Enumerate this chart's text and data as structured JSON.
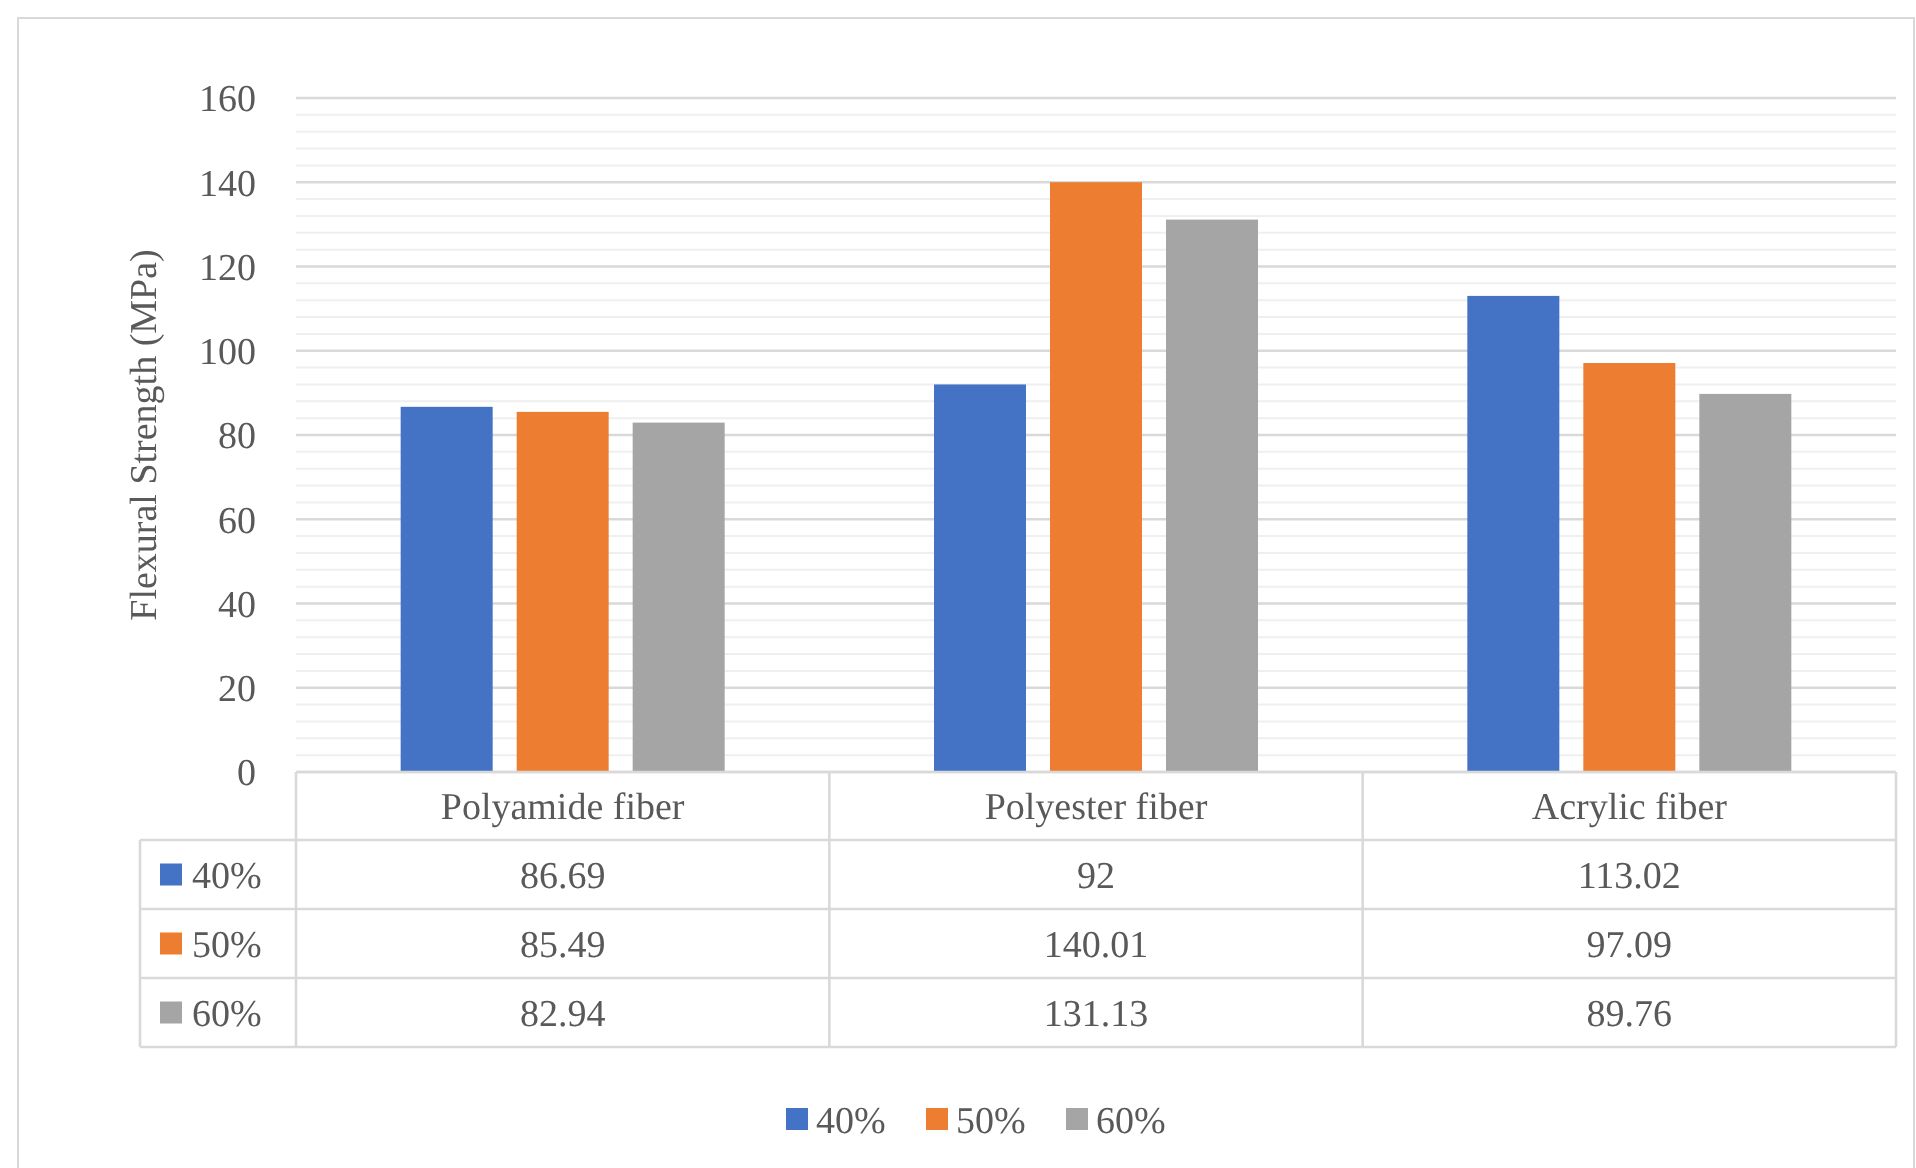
{
  "chart_data": {
    "type": "bar",
    "ylabel": "Flexural Strength (MPa)",
    "categories": [
      "Polyamide fiber",
      "Polyester fiber",
      "Acrylic fiber"
    ],
    "series": [
      {
        "name": "40%",
        "color": "#4472c4",
        "values": [
          86.69,
          92,
          113.02
        ]
      },
      {
        "name": "50%",
        "color": "#ed7d31",
        "values": [
          85.49,
          140.01,
          97.09
        ]
      },
      {
        "name": "60%",
        "color": "#a5a5a5",
        "values": [
          82.94,
          131.13,
          89.76
        ]
      }
    ],
    "ylim": [
      0,
      160
    ],
    "yticks": [
      0,
      {
        "value": 4,
        "label": null
      },
      {
        "value": 8,
        "label": null
      },
      {
        "value": 12,
        "label": null
      },
      {
        "value": 16,
        "label": null
      },
      20,
      {
        "value": 24,
        "label": null
      },
      {
        "value": 28,
        "label": null
      },
      {
        "value": 32,
        "label": null
      },
      {
        "value": 36,
        "label": null
      },
      40,
      {
        "value": 44,
        "label": null
      },
      {
        "value": 48,
        "label": null
      },
      {
        "value": 52,
        "label": null
      },
      {
        "value": 56,
        "label": null
      },
      60,
      {
        "value": 64,
        "label": null
      },
      {
        "value": 68,
        "label": null
      },
      {
        "value": 72,
        "label": null
      },
      {
        "value": 76,
        "label": null
      },
      80,
      {
        "value": 84,
        "label": null
      },
      {
        "value": 88,
        "label": null
      },
      {
        "value": 92,
        "label": null
      },
      {
        "value": 96,
        "label": null
      },
      100,
      {
        "value": 104,
        "label": null
      },
      {
        "value": 108,
        "label": null
      },
      {
        "value": 112,
        "label": null
      },
      {
        "value": 116,
        "label": null
      },
      120,
      {
        "value": 124,
        "label": null
      },
      {
        "value": 128,
        "label": null
      },
      {
        "value": 132,
        "label": null
      },
      {
        "value": 136,
        "label": null
      },
      140,
      {
        "value": 144,
        "label": null
      },
      {
        "value": 148,
        "label": null
      },
      {
        "value": 152,
        "label": null
      },
      {
        "value": 156,
        "label": null
      },
      160
    ],
    "grid": true,
    "data_labels": true,
    "legend": "bottom"
  }
}
